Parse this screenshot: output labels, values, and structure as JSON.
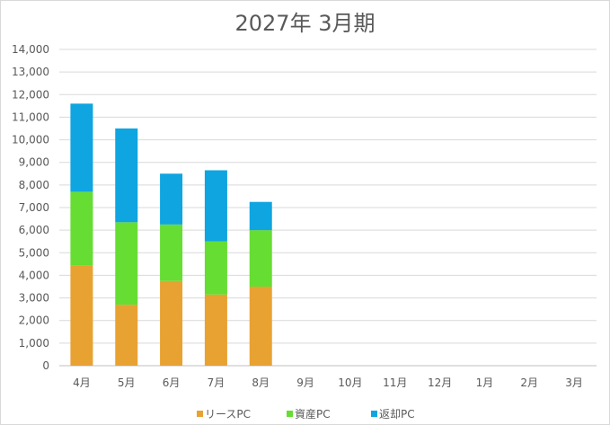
{
  "chart_data": {
    "type": "bar",
    "stacked": true,
    "title": "2027年 3月期",
    "categories": [
      "4月",
      "5月",
      "6月",
      "7月",
      "8月",
      "9月",
      "10月",
      "11月",
      "12月",
      "1月",
      "2月",
      "3月"
    ],
    "series": [
      {
        "name": "リースPC",
        "color": "#e8a232",
        "values": [
          4450,
          2700,
          3750,
          3150,
          3500,
          0,
          0,
          0,
          0,
          0,
          0,
          0
        ]
      },
      {
        "name": "資産PC",
        "color": "#66dd33",
        "values": [
          3250,
          3650,
          2500,
          2350,
          2500,
          0,
          0,
          0,
          0,
          0,
          0,
          0
        ]
      },
      {
        "name": "返却PC",
        "color": "#0ea5e0",
        "values": [
          3900,
          4150,
          2250,
          3150,
          1250,
          0,
          0,
          0,
          0,
          0,
          0,
          0
        ]
      }
    ],
    "ylim": [
      0,
      14000
    ],
    "yticks": [
      "0",
      "1,000",
      "2,000",
      "3,000",
      "4,000",
      "5,000",
      "6,000",
      "7,000",
      "8,000",
      "9,000",
      "10,000",
      "11,000",
      "12,000",
      "13,000",
      "14,000"
    ],
    "grid": true,
    "legend_position": "bottom"
  }
}
